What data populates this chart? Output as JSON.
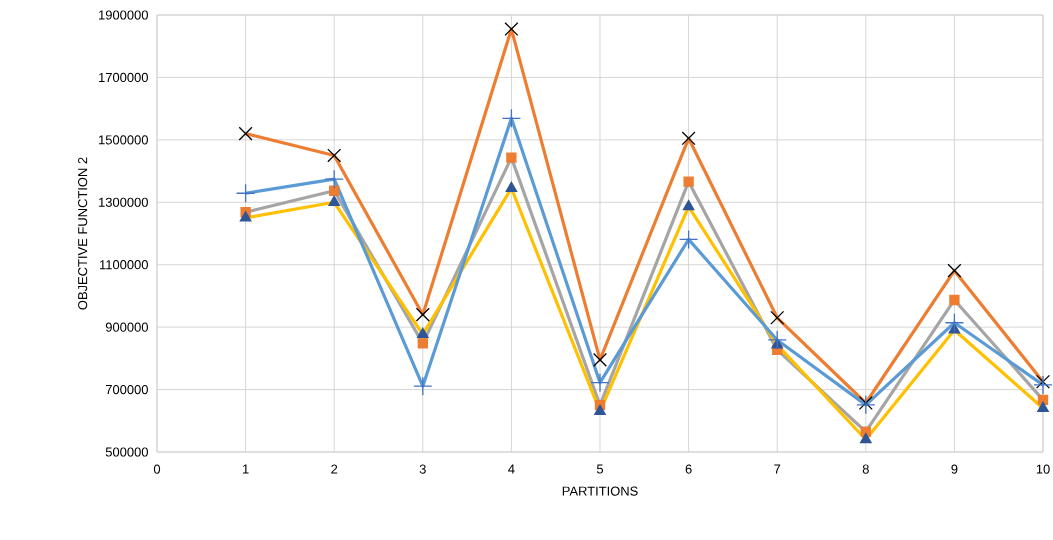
{
  "chart_data": {
    "type": "line",
    "xlabel": "PARTITIONS",
    "ylabel": "OBJECTIVE FUNCTION 2",
    "x": [
      1,
      2,
      3,
      4,
      5,
      6,
      7,
      8,
      9,
      10
    ],
    "series": [
      {
        "color": "#ed7d31",
        "marker": "cross",
        "colors": [
          "#000000",
          "#000000",
          "#000000",
          "#000000",
          "#000000",
          "#000000",
          "#000000",
          "#000000",
          "#000000",
          "#000000"
        ],
        "values": [
          1520000,
          1450000,
          940000,
          1855000,
          795000,
          1505000,
          930000,
          657000,
          1081000,
          725000
        ]
      },
      {
        "color": "#a5a5a5",
        "marker": "square",
        "colors": [
          "#ed7d31",
          "#ed7d31",
          "#ed7d31",
          "#ed7d31",
          "#ed7d31",
          "#ed7d31",
          "#ed7d31",
          "#ed7d31",
          "#ed7d31",
          "#ed7d31"
        ],
        "values": [
          1268000,
          1337000,
          848000,
          1443000,
          650000,
          1366000,
          827000,
          565000,
          987000,
          667000
        ]
      },
      {
        "color": "#ffc000",
        "marker": "triangle",
        "colors": [
          "#2f5597",
          "#2f5597",
          "#2f5597",
          "#2f5597",
          "#2f5597",
          "#2f5597",
          "#2f5597",
          "#2f5597",
          "#2f5597",
          "#2f5597"
        ],
        "values": [
          1250000,
          1300000,
          877000,
          1345000,
          630000,
          1286000,
          843000,
          540000,
          891000,
          640000
        ]
      },
      {
        "color": "#5b9bd5",
        "marker": "plus",
        "colors": [
          "#4472c4",
          "#4472c4",
          "#4472c4",
          "#4472c4",
          "#4472c4",
          "#4472c4",
          "#4472c4",
          "#4472c4",
          "#4472c4",
          "#4472c4"
        ],
        "values": [
          1329000,
          1374000,
          711000,
          1569000,
          722000,
          1181000,
          859000,
          651000,
          914000,
          715000
        ]
      }
    ],
    "xlim": [
      0,
      10
    ],
    "xticks": [
      0,
      1,
      2,
      3,
      4,
      5,
      6,
      7,
      8,
      9,
      10
    ],
    "ylim": [
      500000,
      1900000
    ],
    "yticks": [
      500000,
      700000,
      900000,
      1100000,
      1300000,
      1500000,
      1700000,
      1900000
    ],
    "grid": true,
    "line_style": "solid"
  }
}
